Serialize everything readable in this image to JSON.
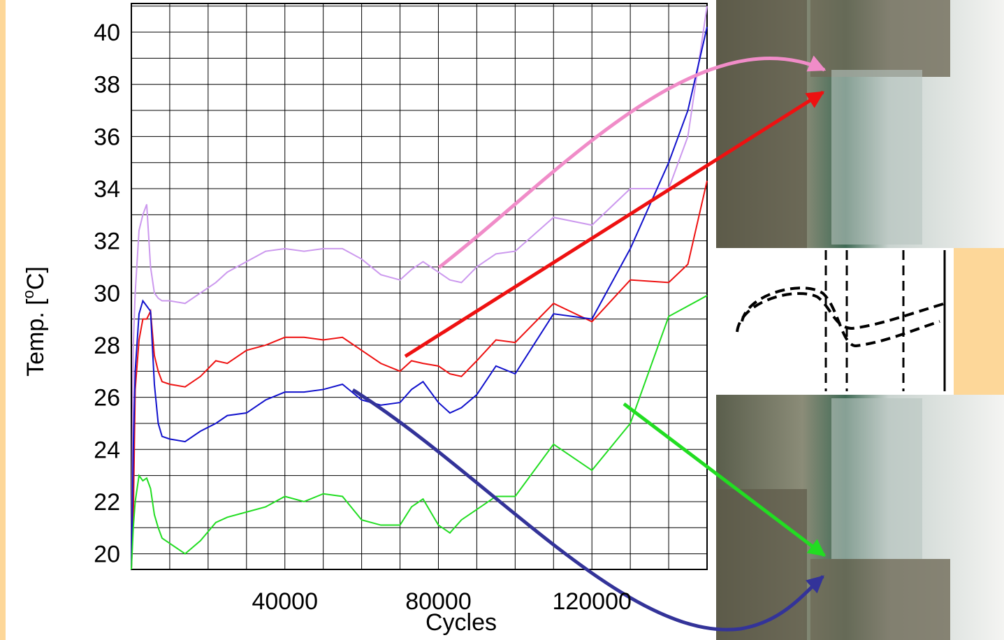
{
  "chart_data": {
    "type": "line",
    "x_label": "Cycles",
    "y_label": {
      "text": "Temp. [",
      "sup": "o",
      "end": "C]"
    },
    "xlim": [
      0,
      150000
    ],
    "ylim": [
      19.4,
      41.1
    ],
    "xticks": [
      40000,
      80000,
      120000
    ],
    "yticks": [
      20,
      22,
      24,
      26,
      28,
      30,
      32,
      34,
      36,
      38,
      40
    ],
    "x_grid_minor": [
      10000,
      20000,
      30000,
      50000,
      60000,
      70000,
      90000,
      100000,
      110000,
      130000,
      140000
    ],
    "y_grid_minor": [
      21,
      23,
      25,
      27,
      29,
      31,
      33,
      35,
      37,
      39,
      41
    ],
    "grid": true,
    "x": [
      0,
      500,
      1000,
      2000,
      3000,
      4000,
      5000,
      6000,
      7000,
      8000,
      10000,
      14000,
      18000,
      22000,
      25000,
      30000,
      35000,
      40000,
      45000,
      50000,
      55000,
      60000,
      65000,
      70000,
      73000,
      76000,
      80000,
      83000,
      86000,
      90000,
      95000,
      100000,
      110000,
      120000,
      130000,
      140000,
      145000,
      150000
    ],
    "series": [
      {
        "color": "#cc99ee",
        "values": [
          19.4,
          28,
          30,
          32.4,
          33,
          33.4,
          31,
          30,
          29.8,
          29.7,
          29.7,
          29.6,
          30,
          30.4,
          30.8,
          31.2,
          31.6,
          31.7,
          31.6,
          31.7,
          31.7,
          31.3,
          30.7,
          30.5,
          30.9,
          31.2,
          30.8,
          30.5,
          30.4,
          31,
          31.5,
          31.6,
          32.9,
          32.6,
          34,
          34,
          36,
          41
        ]
      },
      {
        "color": "#ee1111",
        "values": [
          19.4,
          21.4,
          26.3,
          28.2,
          29,
          29,
          29.3,
          27.6,
          27,
          26.6,
          26.5,
          26.4,
          26.8,
          27.4,
          27.3,
          27.8,
          28,
          28.3,
          28.3,
          28.2,
          28.3,
          27.8,
          27.3,
          27,
          27.4,
          27.3,
          27.2,
          26.9,
          26.8,
          27.4,
          28.2,
          28.1,
          29.6,
          28.9,
          30.5,
          30.4,
          31.1,
          34.3
        ]
      },
      {
        "color": "#1111cc",
        "values": [
          19.4,
          24,
          27,
          29.2,
          29.7,
          29.5,
          29.3,
          26.5,
          25,
          24.5,
          24.4,
          24.3,
          24.7,
          25,
          25.3,
          25.4,
          25.9,
          26.2,
          26.2,
          26.3,
          26.5,
          25.9,
          25.7,
          25.8,
          26.3,
          26.6,
          25.8,
          25.4,
          25.6,
          26.1,
          27.2,
          26.9,
          29.2,
          29,
          31.7,
          35,
          37,
          40.2
        ]
      },
      {
        "color": "#22dd22",
        "values": [
          19.4,
          21,
          22,
          23,
          22.8,
          22.9,
          22.5,
          21.5,
          21,
          20.6,
          20.4,
          20,
          20.5,
          21.2,
          21.4,
          21.6,
          21.8,
          22.2,
          22,
          22.3,
          22.2,
          21.3,
          21.1,
          21.1,
          21.8,
          22.1,
          21.1,
          20.8,
          21.3,
          21.7,
          22.2,
          22.2,
          24.2,
          23.2,
          25,
          29.1,
          29.5,
          29.9
        ]
      }
    ]
  }
}
